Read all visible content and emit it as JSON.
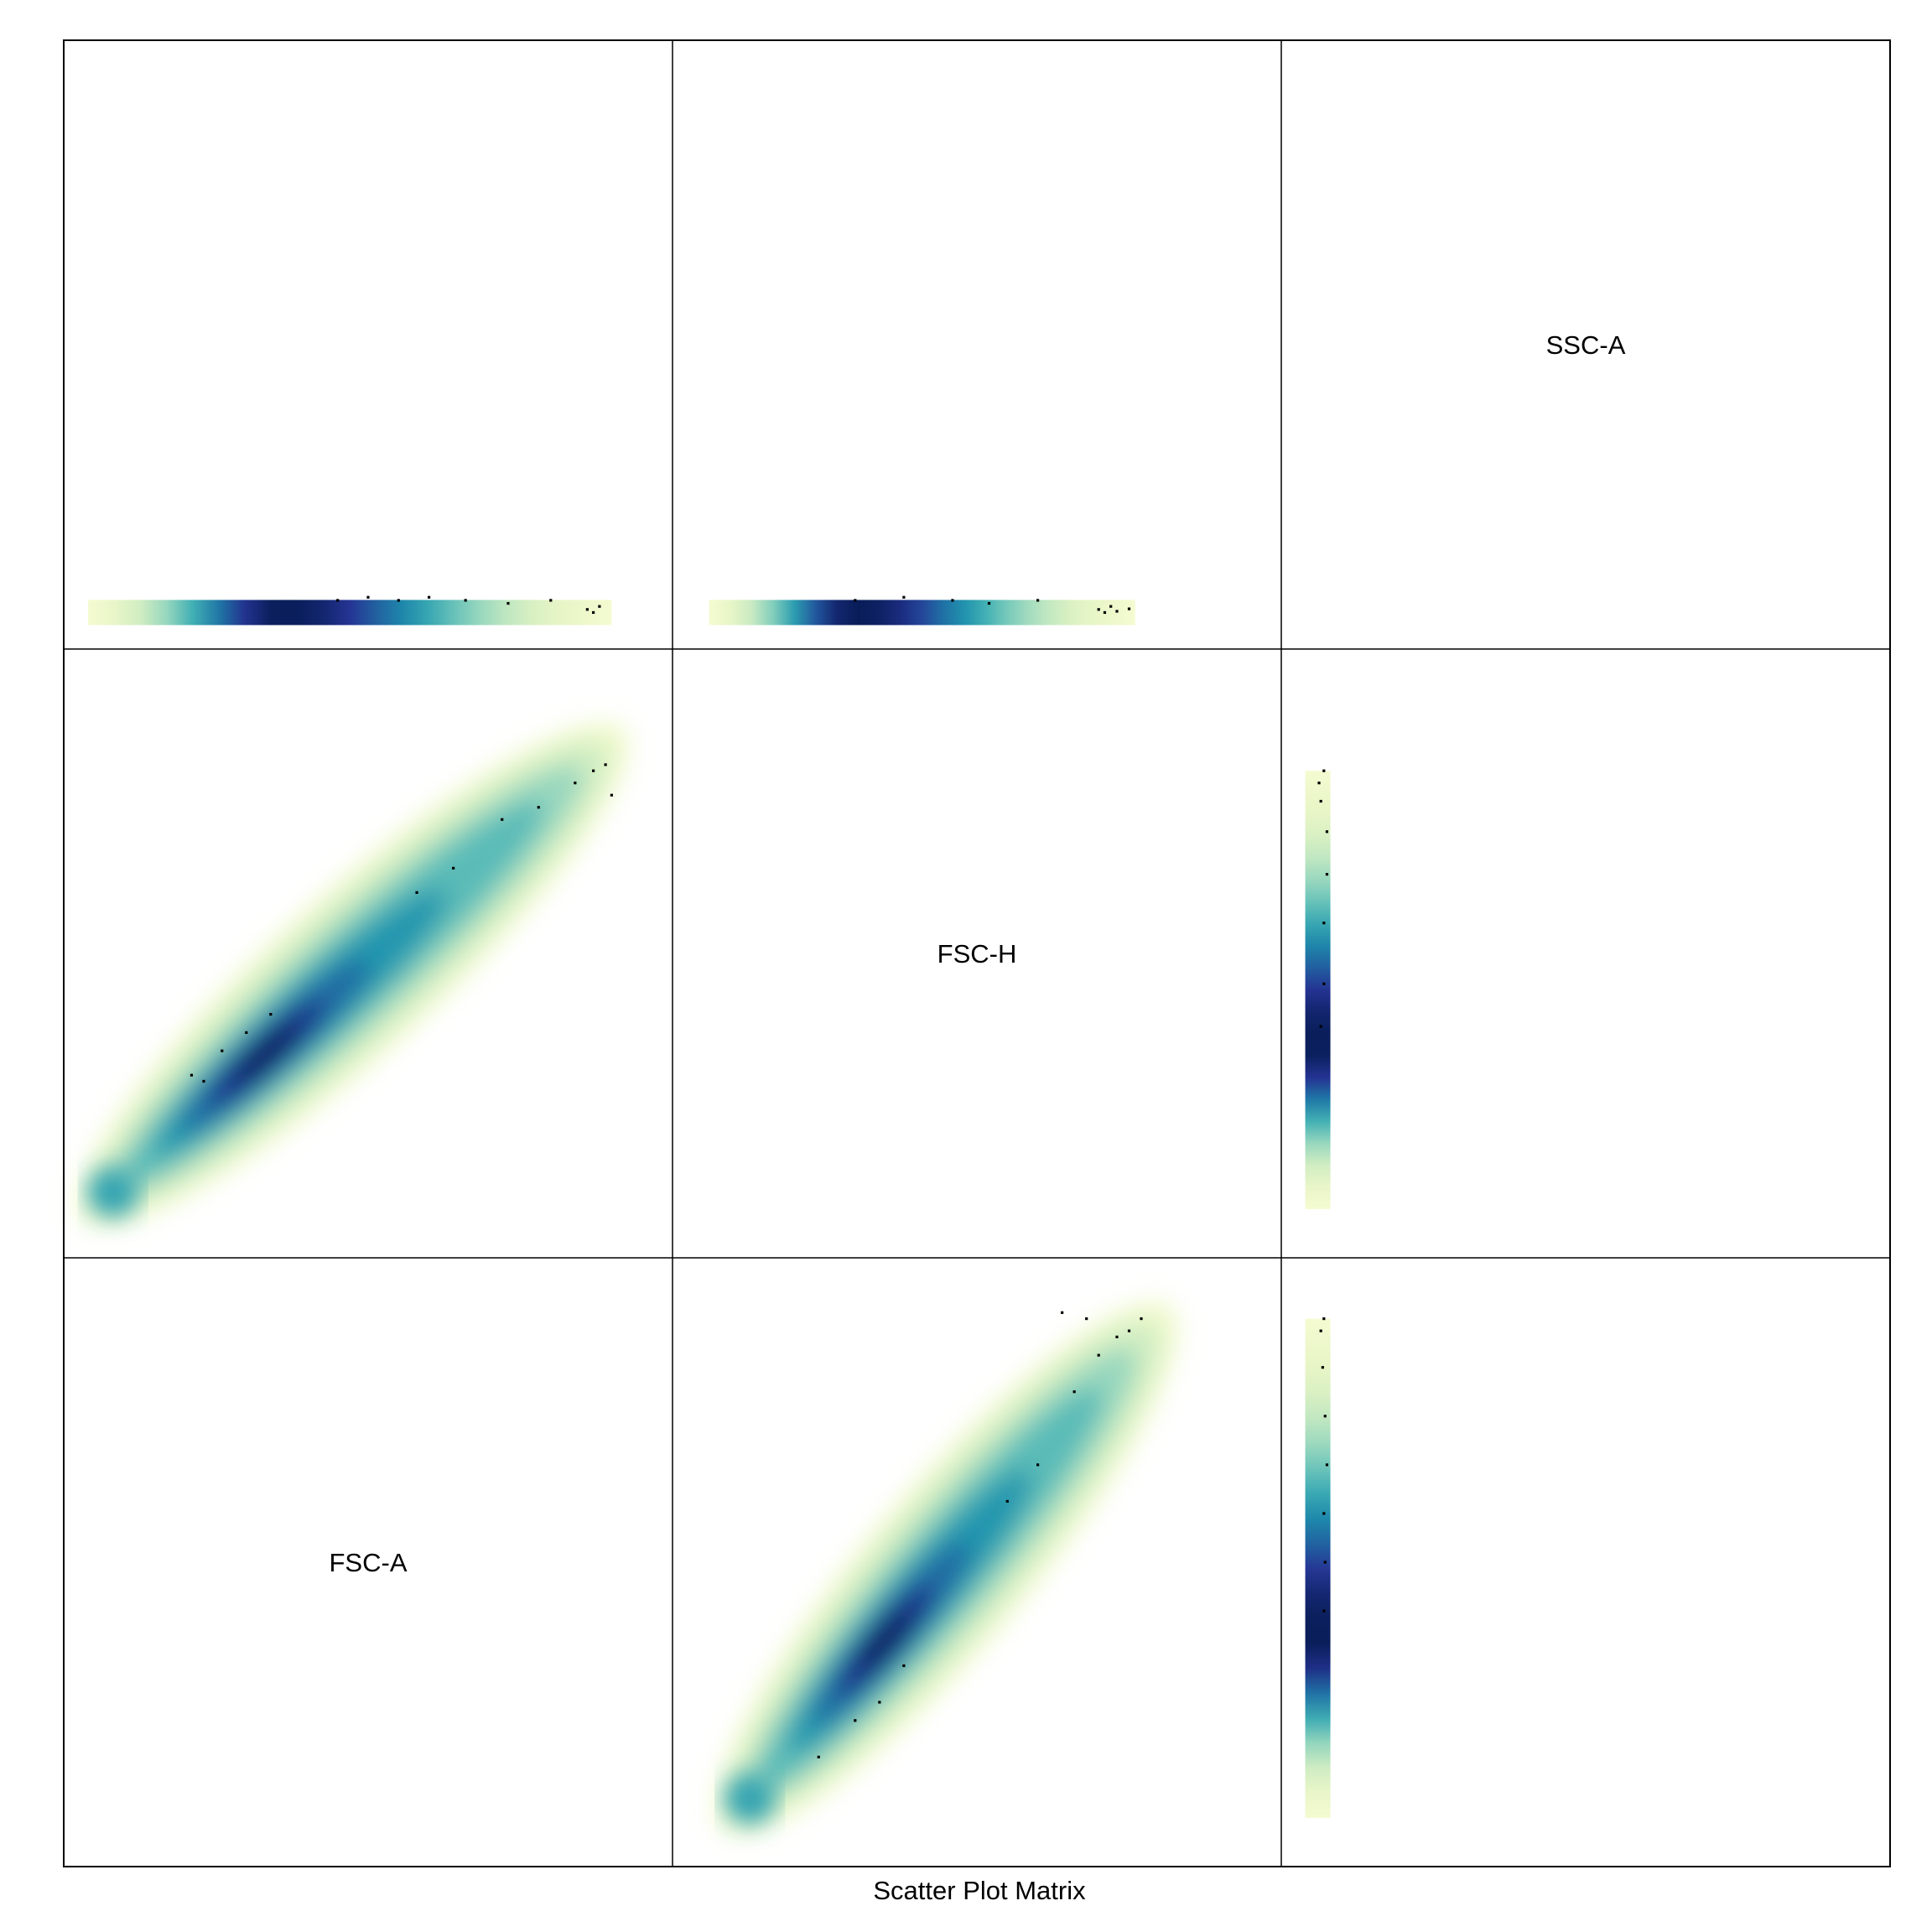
{
  "chart_data": {
    "type": "scatter",
    "subtype": "scatter-plot-matrix (density-colored)",
    "title": "",
    "xlabel": "Scatter Plot Matrix",
    "ylabel": "",
    "variables": [
      "FSC-A",
      "FSC-H",
      "SSC-A"
    ],
    "grid": false,
    "density_colormap": [
      "#f7fcd2",
      "#e4f4c4",
      "#b7e4c0",
      "#7dccbc",
      "#42b0b4",
      "#1d90ad",
      "#216aa3",
      "#253494",
      "#081d58"
    ],
    "panels": [
      {
        "row": 0,
        "col": 0,
        "x": "FSC-A",
        "y": "SSC-A",
        "density": {
          "kind": "horizontal-band",
          "x_range": [
            0.04,
            0.9
          ],
          "y_level": 0.06,
          "peak_x": 0.36
        },
        "outliers": [
          [
            0.45,
            0.08
          ],
          [
            0.5,
            0.085
          ],
          [
            0.55,
            0.08
          ],
          [
            0.6,
            0.085
          ],
          [
            0.66,
            0.08
          ],
          [
            0.73,
            0.075
          ],
          [
            0.8,
            0.08
          ],
          [
            0.86,
            0.065
          ],
          [
            0.87,
            0.06
          ],
          [
            0.88,
            0.07
          ]
        ]
      },
      {
        "row": 0,
        "col": 1,
        "x": "FSC-H",
        "y": "SSC-A",
        "density": {
          "kind": "horizontal-band",
          "x_range": [
            0.06,
            0.76
          ],
          "y_level": 0.06,
          "peak_x": 0.3
        },
        "outliers": [
          [
            0.3,
            0.08
          ],
          [
            0.38,
            0.085
          ],
          [
            0.46,
            0.08
          ],
          [
            0.52,
            0.075
          ],
          [
            0.6,
            0.08
          ],
          [
            0.7,
            0.065
          ],
          [
            0.71,
            0.06
          ],
          [
            0.72,
            0.07
          ],
          [
            0.73,
            0.062
          ],
          [
            0.75,
            0.066
          ]
        ]
      },
      {
        "row": 1,
        "col": 0,
        "x": "FSC-A",
        "y": "FSC-H",
        "density": {
          "kind": "diagonal-ellipse",
          "from": [
            0.05,
            0.08
          ],
          "to": [
            0.9,
            0.85
          ],
          "peak_at": [
            0.32,
            0.35
          ]
        },
        "outliers": [
          [
            0.21,
            0.3
          ],
          [
            0.23,
            0.29
          ],
          [
            0.26,
            0.34
          ],
          [
            0.3,
            0.37
          ],
          [
            0.34,
            0.4
          ],
          [
            0.58,
            0.6
          ],
          [
            0.64,
            0.64
          ],
          [
            0.72,
            0.72
          ],
          [
            0.78,
            0.74
          ],
          [
            0.84,
            0.78
          ],
          [
            0.87,
            0.8
          ],
          [
            0.89,
            0.81
          ],
          [
            0.9,
            0.76
          ]
        ]
      },
      {
        "row": 1,
        "col": 2,
        "x": "SSC-A",
        "y": "FSC-H",
        "density": {
          "kind": "vertical-band",
          "x_level": 0.06,
          "y_range": [
            0.08,
            0.8
          ],
          "peak_y": 0.35
        },
        "outliers": [
          [
            0.065,
            0.38
          ],
          [
            0.07,
            0.45
          ],
          [
            0.07,
            0.55
          ],
          [
            0.075,
            0.63
          ],
          [
            0.075,
            0.7
          ],
          [
            0.065,
            0.75
          ],
          [
            0.062,
            0.78
          ],
          [
            0.07,
            0.8
          ]
        ]
      },
      {
        "row": 2,
        "col": 1,
        "x": "FSC-H",
        "y": "FSC-A",
        "density": {
          "kind": "diagonal-ellipse",
          "from": [
            0.1,
            0.08
          ],
          "to": [
            0.8,
            0.9
          ],
          "peak_at": [
            0.34,
            0.38
          ]
        },
        "outliers": [
          [
            0.24,
            0.18
          ],
          [
            0.3,
            0.24
          ],
          [
            0.34,
            0.27
          ],
          [
            0.38,
            0.33
          ],
          [
            0.55,
            0.6
          ],
          [
            0.6,
            0.66
          ],
          [
            0.66,
            0.78
          ],
          [
            0.7,
            0.84
          ],
          [
            0.73,
            0.87
          ],
          [
            0.75,
            0.88
          ],
          [
            0.77,
            0.9
          ],
          [
            0.68,
            0.9
          ],
          [
            0.64,
            0.91
          ]
        ]
      },
      {
        "row": 2,
        "col": 2,
        "x": "SSC-A",
        "y": "FSC-A",
        "density": {
          "kind": "vertical-band",
          "x_level": 0.06,
          "y_range": [
            0.08,
            0.9
          ],
          "peak_y": 0.38
        },
        "outliers": [
          [
            0.07,
            0.42
          ],
          [
            0.072,
            0.5
          ],
          [
            0.07,
            0.58
          ],
          [
            0.075,
            0.66
          ],
          [
            0.072,
            0.74
          ],
          [
            0.068,
            0.82
          ],
          [
            0.065,
            0.88
          ],
          [
            0.07,
            0.9
          ]
        ]
      }
    ]
  }
}
